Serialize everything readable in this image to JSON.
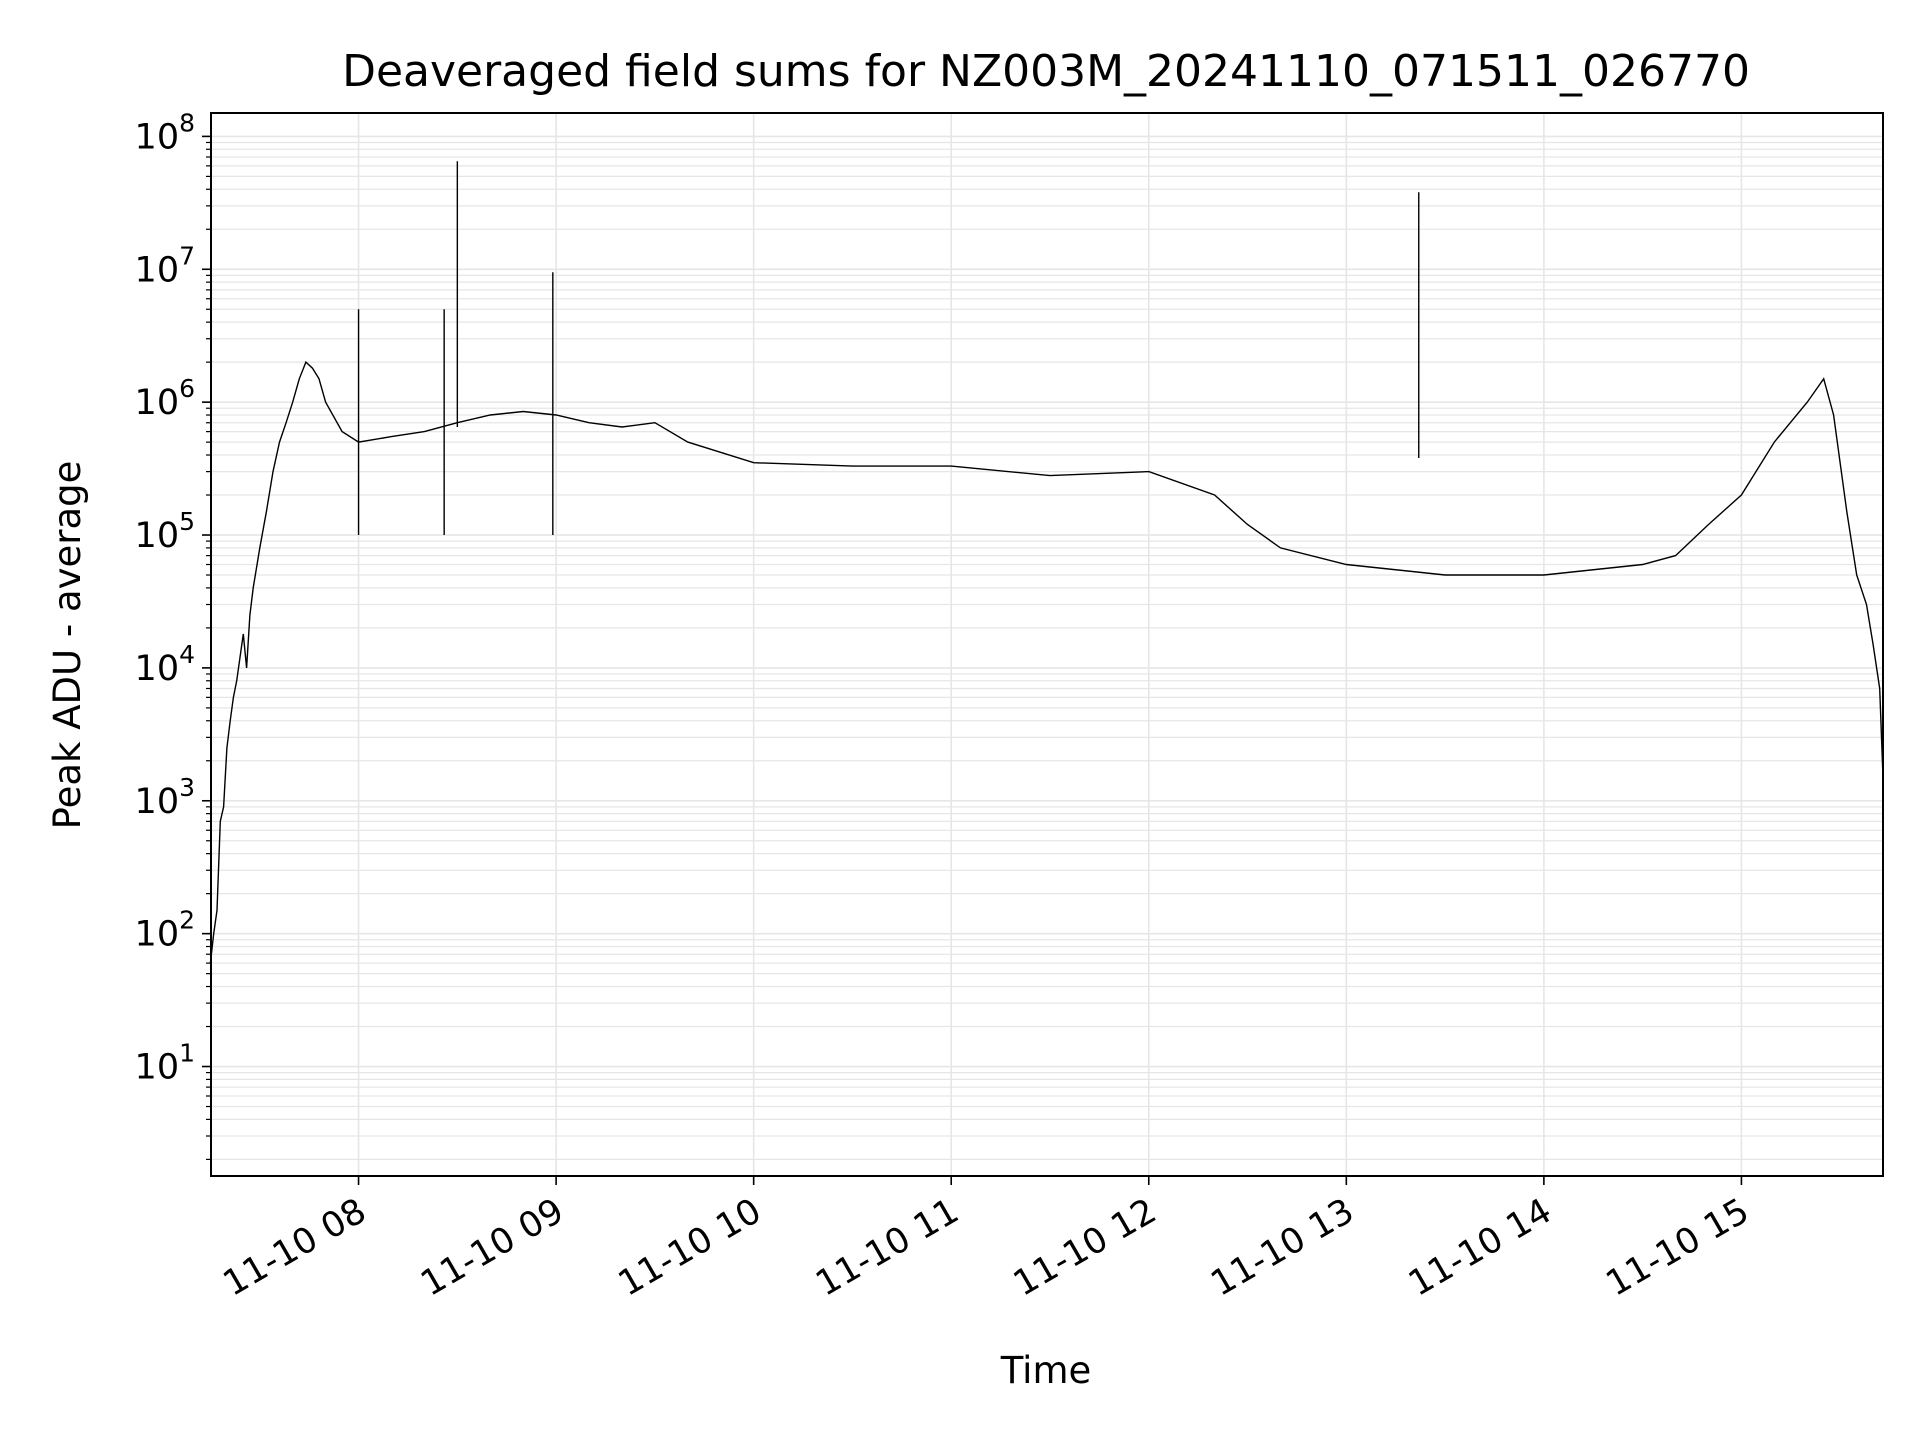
{
  "chart_data": {
    "type": "line",
    "title": "Deaveraged field sums for NZ003M_20241110_071511_026770",
    "xlabel": "Time",
    "ylabel": "Peak ADU - average",
    "y_scale": "log",
    "ylim": [
      1.5,
      150000000
    ],
    "xlim": [
      "2024-11-10 07:15:11",
      "2024-11-10 15:43:00"
    ],
    "x_ticks": [
      {
        "x": "2024-11-10 08:00",
        "label": "11-10 08"
      },
      {
        "x": "2024-11-10 09:00",
        "label": "11-10 09"
      },
      {
        "x": "2024-11-10 10:00",
        "label": "11-10 10"
      },
      {
        "x": "2024-11-10 11:00",
        "label": "11-10 11"
      },
      {
        "x": "2024-11-10 12:00",
        "label": "11-10 12"
      },
      {
        "x": "2024-11-10 13:00",
        "label": "11-10 13"
      },
      {
        "x": "2024-11-10 14:00",
        "label": "11-10 14"
      },
      {
        "x": "2024-11-10 15:00",
        "label": "11-10 15"
      }
    ],
    "y_ticks": [
      {
        "value": 10,
        "exp": "1"
      },
      {
        "value": 100,
        "exp": "2"
      },
      {
        "value": 1000,
        "exp": "3"
      },
      {
        "value": 10000,
        "exp": "4"
      },
      {
        "value": 100000,
        "exp": "5"
      },
      {
        "value": 1000000,
        "exp": "6"
      },
      {
        "value": 10000000,
        "exp": "7"
      },
      {
        "value": 100000000,
        "exp": "8"
      }
    ],
    "tick_base": "10",
    "grid": true,
    "line_color": "#000000",
    "grid_color": "#e6e6e6",
    "series": [
      {
        "points": [
          [
            "2024-11-10 07:15",
            60
          ],
          [
            "2024-11-10 07:16",
            100
          ],
          [
            "2024-11-10 07:17",
            150
          ],
          [
            "2024-11-10 07:18",
            700
          ],
          [
            "2024-11-10 07:19",
            900
          ],
          [
            "2024-11-10 07:20",
            2500
          ],
          [
            "2024-11-10 07:21",
            4000
          ],
          [
            "2024-11-10 07:22",
            6000
          ],
          [
            "2024-11-10 07:23",
            8000
          ],
          [
            "2024-11-10 07:24",
            12000
          ],
          [
            "2024-11-10 07:25",
            18000
          ],
          [
            "2024-11-10 07:26",
            10000
          ],
          [
            "2024-11-10 07:27",
            25000
          ],
          [
            "2024-11-10 07:28",
            40000
          ],
          [
            "2024-11-10 07:30",
            80000
          ],
          [
            "2024-11-10 07:32",
            150000
          ],
          [
            "2024-11-10 07:34",
            300000
          ],
          [
            "2024-11-10 07:36",
            500000
          ],
          [
            "2024-11-10 07:38",
            700000
          ],
          [
            "2024-11-10 07:40",
            1000000
          ],
          [
            "2024-11-10 07:42",
            1500000
          ],
          [
            "2024-11-10 07:44",
            2000000
          ],
          [
            "2024-11-10 07:46",
            1800000
          ],
          [
            "2024-11-10 07:48",
            1500000
          ],
          [
            "2024-11-10 07:50",
            1000000
          ],
          [
            "2024-11-10 07:55",
            600000
          ],
          [
            "2024-11-10 08:00",
            500000
          ],
          [
            "2024-11-10 08:10",
            550000
          ],
          [
            "2024-11-10 08:20",
            600000
          ],
          [
            "2024-11-10 08:30",
            700000
          ],
          [
            "2024-11-10 08:40",
            800000
          ],
          [
            "2024-11-10 08:50",
            850000
          ],
          [
            "2024-11-10 09:00",
            800000
          ],
          [
            "2024-11-10 09:10",
            700000
          ],
          [
            "2024-11-10 09:20",
            650000
          ],
          [
            "2024-11-10 09:30",
            700000
          ],
          [
            "2024-11-10 09:40",
            500000
          ],
          [
            "2024-11-10 10:00",
            350000
          ],
          [
            "2024-11-10 10:30",
            330000
          ],
          [
            "2024-11-10 11:00",
            330000
          ],
          [
            "2024-11-10 11:30",
            280000
          ],
          [
            "2024-11-10 12:00",
            300000
          ],
          [
            "2024-11-10 12:20",
            200000
          ],
          [
            "2024-11-10 12:30",
            120000
          ],
          [
            "2024-11-10 12:40",
            80000
          ],
          [
            "2024-11-10 13:00",
            60000
          ],
          [
            "2024-11-10 13:30",
            50000
          ],
          [
            "2024-11-10 14:00",
            50000
          ],
          [
            "2024-11-10 14:30",
            60000
          ],
          [
            "2024-11-10 14:40",
            70000
          ],
          [
            "2024-11-10 14:50",
            120000
          ],
          [
            "2024-11-10 15:00",
            200000
          ],
          [
            "2024-11-10 15:10",
            500000
          ],
          [
            "2024-11-10 15:20",
            1000000
          ],
          [
            "2024-11-10 15:25",
            1500000
          ],
          [
            "2024-11-10 15:28",
            800000
          ],
          [
            "2024-11-10 15:32",
            150000
          ],
          [
            "2024-11-10 15:35",
            50000
          ],
          [
            "2024-11-10 15:38",
            30000
          ],
          [
            "2024-11-10 15:40",
            15000
          ],
          [
            "2024-11-10 15:42",
            7000
          ],
          [
            "2024-11-10 15:43",
            1500
          ]
        ],
        "spikes": [
          [
            "2024-11-10 08:30",
            65000000
          ],
          [
            "2024-11-10 08:00",
            5000000
          ],
          [
            "2024-11-10 08:26",
            5000000
          ],
          [
            "2024-11-10 08:59",
            9500000
          ],
          [
            "2024-11-10 13:22",
            38000000
          ]
        ]
      }
    ]
  }
}
